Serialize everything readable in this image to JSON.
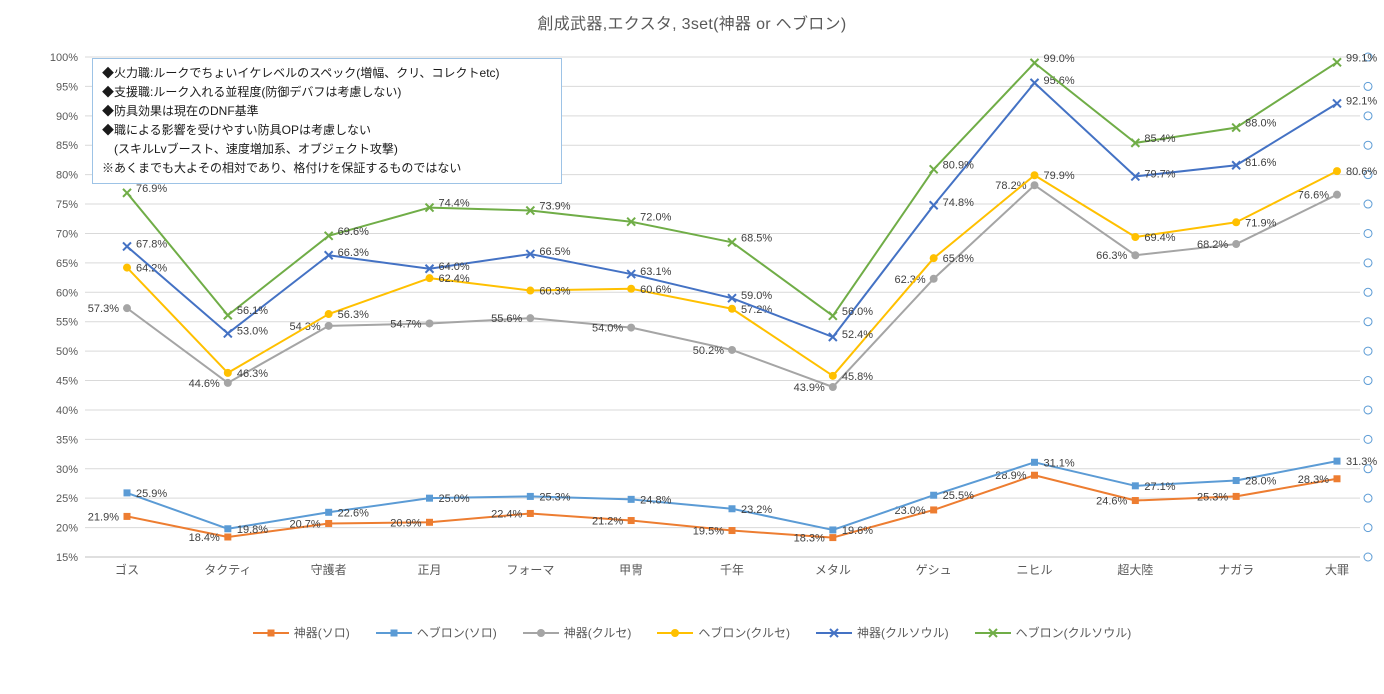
{
  "note_box": {
    "lines": [
      "◆火力職:ルークでちょいイケレベルのスペック(増幅、クリ、コレクトetc)",
      "◆支援職:ルーク入れる並程度(防御デバフは考慮しない)",
      "◆防具効果は現在のDNF基準",
      "◆職による影響を受けやすい防具OPは考慮しない",
      "　(スキルLvブースト、速度増加系、オブジェクト攻撃)",
      "※あくまでも大よその相対であり、格付けを保証するものではない"
    ]
  },
  "chart_data": {
    "type": "line",
    "title": "創成武器,エクスタ, 3set(神器 or ヘブロン)",
    "categories": [
      "ゴス",
      "タクティ",
      "守護者",
      "正月",
      "フォーマ",
      "甲冑",
      "千年",
      "メタル",
      "ゲシュ",
      "ニヒル",
      "超大陸",
      "ナガラ",
      "大罪"
    ],
    "series": [
      {
        "name": "神器(ソロ)",
        "color": "#ED7D31",
        "marker": "square",
        "values": [
          21.9,
          18.4,
          20.7,
          20.9,
          22.4,
          21.2,
          19.5,
          18.3,
          23.0,
          28.9,
          24.6,
          25.3,
          28.3
        ]
      },
      {
        "name": "ヘブロン(ソロ)",
        "color": "#5B9BD5",
        "marker": "square",
        "values": [
          25.9,
          19.8,
          22.6,
          25.0,
          25.3,
          24.8,
          23.2,
          19.6,
          25.5,
          31.1,
          27.1,
          28.0,
          31.3
        ]
      },
      {
        "name": "神器(クルセ)",
        "color": "#A5A5A5",
        "marker": "circle",
        "values": [
          57.3,
          44.6,
          54.3,
          54.7,
          55.6,
          54.0,
          50.2,
          43.9,
          62.3,
          78.2,
          66.3,
          68.2,
          76.6
        ]
      },
      {
        "name": "ヘブロン(クルセ)",
        "color": "#FFC000",
        "marker": "circle",
        "values": [
          64.2,
          46.3,
          56.3,
          62.4,
          60.3,
          60.6,
          57.2,
          45.8,
          65.8,
          79.9,
          69.4,
          71.9,
          80.6
        ]
      },
      {
        "name": "神器(クルソウル)",
        "color": "#4472C4",
        "marker": "x",
        "values": [
          67.8,
          53.0,
          66.3,
          64.0,
          66.5,
          63.1,
          59.0,
          52.4,
          74.8,
          95.6,
          79.7,
          81.6,
          92.1
        ]
      },
      {
        "name": "ヘブロン(クルソウル)",
        "color": "#70AD47",
        "marker": "x",
        "values": [
          76.9,
          56.1,
          69.6,
          74.4,
          73.9,
          72.0,
          68.5,
          56.0,
          80.9,
          99.0,
          85.4,
          88.0,
          99.1
        ]
      }
    ],
    "ylim": [
      15,
      100
    ],
    "ytick_step": 5,
    "ytick_suffix": "%",
    "grid": true,
    "legend_position": "bottom",
    "colors": {
      "grid": "#D9D9D9",
      "axis_line": "#BFBFBF",
      "axis_text": "#595959",
      "data_label": "#404040",
      "edge_circle": "#5B9BD5"
    }
  }
}
